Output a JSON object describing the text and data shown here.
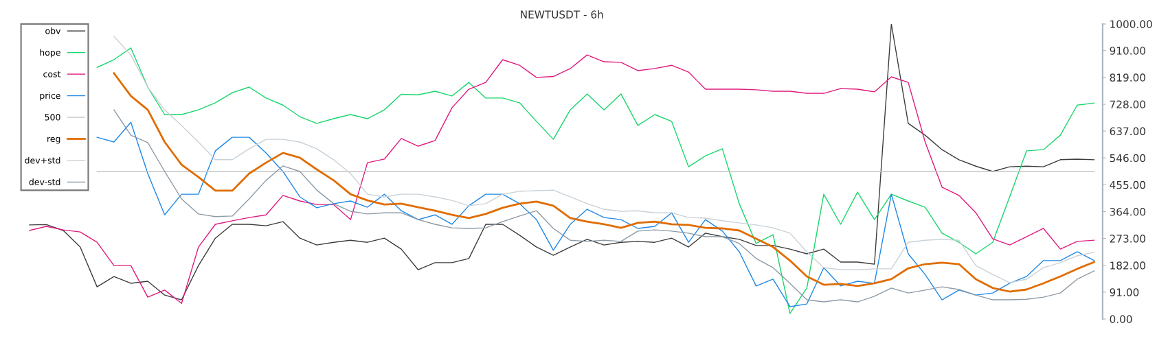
{
  "chart_data": {
    "type": "line",
    "title": "NEWTUSDT - 6h",
    "categories": [
      null,
      null,
      null,
      null,
      null,
      null,
      null,
      null,
      null,
      null,
      null,
      null,
      null,
      null,
      null,
      null,
      null,
      null,
      null,
      null,
      null,
      null,
      null,
      null,
      null,
      null,
      null,
      null,
      null,
      null,
      null,
      null,
      null,
      null,
      null,
      null,
      null,
      null,
      null,
      null,
      null,
      null,
      null,
      null,
      null,
      null,
      null,
      null,
      null,
      null,
      null,
      null,
      null,
      null,
      null,
      null,
      null,
      null,
      null,
      null,
      null,
      null,
      null,
      null
    ],
    "series": [
      {
        "name": "obv",
        "color": "#3c3c3c",
        "values": [
          319,
          320,
          300,
          244,
          109,
          144,
          121,
          128,
          81,
          65,
          181,
          274,
          321,
          321,
          316,
          330,
          274,
          251,
          260,
          267,
          260,
          274,
          237,
          167,
          191,
          191,
          205,
          321,
          321,
          284,
          244,
          216,
          244,
          270,
          251,
          260,
          263,
          260,
          274,
          244,
          291,
          279,
          270,
          249,
          249,
          237,
          221,
          237,
          193,
          193,
          186,
          1000,
          663,
          623,
          574,
          540,
          518,
          500,
          516,
          518,
          516,
          540,
          542,
          540
        ]
      },
      {
        "name": "hope",
        "color": "#19d66b",
        "values": [
          null,
          null,
          null,
          null,
          853,
          879,
          919,
          786,
          693,
          693,
          709,
          733,
          767,
          786,
          749,
          725,
          686,
          663,
          679,
          693,
          679,
          709,
          762,
          760,
          772,
          756,
          802,
          749,
          749,
          733,
          670,
          609,
          709,
          763,
          709,
          763,
          656,
          693,
          670,
          516,
          553,
          577,
          391,
          256,
          286,
          19,
          105,
          423,
          321,
          430,
          337,
          423,
          400,
          379,
          291,
          260,
          221,
          260,
          414,
          570,
          574,
          623,
          725,
          732
        ]
      },
      {
        "name": "cost",
        "color": "#e0197d",
        "values": [
          300,
          314,
          302,
          295,
          260,
          181,
          181,
          74,
          98,
          53,
          244,
          321,
          333,
          344,
          353,
          419,
          400,
          388,
          388,
          337,
          530,
          542,
          612,
          586,
          605,
          716,
          779,
          802,
          879,
          860,
          819,
          822,
          849,
          895,
          872,
          870,
          842,
          849,
          860,
          837,
          779,
          779,
          779,
          777,
          772,
          772,
          765,
          765,
          781,
          779,
          770,
          821,
          802,
          600,
          447,
          419,
          360,
          272,
          251,
          279,
          307,
          237,
          263,
          267
        ]
      },
      {
        "name": "price",
        "color": "#1e88e5",
        "values": [
          null,
          null,
          null,
          null,
          616,
          600,
          667,
          493,
          353,
          423,
          423,
          570,
          616,
          616,
          563,
          500,
          414,
          377,
          391,
          400,
          379,
          423,
          367,
          337,
          353,
          321,
          384,
          423,
          423,
          391,
          337,
          233,
          321,
          372,
          344,
          337,
          307,
          314,
          360,
          260,
          337,
          298,
          228,
          112,
          135,
          42,
          51,
          174,
          112,
          128,
          121,
          423,
          221,
          151,
          65,
          98,
          81,
          88,
          121,
          144,
          198,
          198,
          228,
          198
        ]
      },
      {
        "name": "500",
        "color": "#c4c4c4",
        "values": [
          null,
          null,
          null,
          null,
          500,
          500,
          500,
          500,
          500,
          500,
          500,
          500,
          500,
          500,
          500,
          500,
          500,
          500,
          500,
          500,
          500,
          500,
          500,
          500,
          500,
          500,
          500,
          500,
          500,
          500,
          500,
          500,
          500,
          500,
          500,
          500,
          500,
          500,
          500,
          500,
          500,
          500,
          500,
          500,
          500,
          500,
          500,
          500,
          500,
          500,
          500,
          500,
          500,
          500,
          500,
          500,
          500,
          500,
          500,
          500,
          500,
          500,
          500,
          500
        ]
      },
      {
        "name": "reg",
        "color": "#e06c00",
        "values": [
          null,
          null,
          null,
          null,
          null,
          833,
          756,
          709,
          600,
          523,
          481,
          435,
          435,
          493,
          530,
          563,
          547,
          507,
          470,
          423,
          402,
          388,
          391,
          379,
          367,
          353,
          342,
          356,
          377,
          391,
          398,
          384,
          342,
          330,
          321,
          309,
          326,
          330,
          321,
          319,
          309,
          307,
          300,
          272,
          244,
          198,
          144,
          116,
          119,
          112,
          121,
          135,
          172,
          186,
          191,
          186,
          135,
          105,
          93,
          100,
          121,
          144,
          170,
          193
        ]
      },
      {
        "name": "dev+std",
        "color": "#c9d1d7",
        "values": [
          null,
          null,
          null,
          null,
          null,
          958,
          895,
          786,
          709,
          656,
          600,
          540,
          540,
          577,
          609,
          609,
          600,
          577,
          540,
          493,
          423,
          414,
          423,
          423,
          414,
          402,
          384,
          391,
          423,
          433,
          435,
          437,
          414,
          391,
          372,
          365,
          367,
          360,
          360,
          344,
          342,
          333,
          326,
          319,
          309,
          291,
          228,
          174,
          167,
          167,
          170,
          170,
          260,
          267,
          270,
          267,
          181,
          151,
          123,
          135,
          174,
          191,
          214,
          226
        ]
      },
      {
        "name": "dev-std",
        "color": "#8c9aa6",
        "values": [
          null,
          null,
          null,
          null,
          null,
          709,
          623,
          598,
          500,
          407,
          356,
          347,
          349,
          407,
          470,
          519,
          500,
          437,
          391,
          365,
          356,
          360,
          360,
          337,
          321,
          309,
          307,
          309,
          330,
          349,
          367,
          307,
          267,
          263,
          267,
          263,
          298,
          302,
          298,
          291,
          279,
          279,
          256,
          205,
          174,
          121,
          65,
          58,
          65,
          58,
          77,
          105,
          88,
          98,
          109,
          100,
          81,
          65,
          65,
          67,
          74,
          88,
          135,
          163
        ]
      }
    ],
    "ylim": [
      0,
      1000
    ],
    "yticks": [
      {
        "value": 0,
        "label": "0.00"
      },
      {
        "value": 91,
        "label": "91.00"
      },
      {
        "value": 182,
        "label": "182.00"
      },
      {
        "value": 273,
        "label": "273.00"
      },
      {
        "value": 364,
        "label": "364.00"
      },
      {
        "value": 455,
        "label": "455.00"
      },
      {
        "value": 546,
        "label": "546.00"
      },
      {
        "value": 637,
        "label": "637.00"
      },
      {
        "value": 728,
        "label": "728.00"
      },
      {
        "value": 819,
        "label": "819.00"
      },
      {
        "value": 910,
        "label": "910.00"
      },
      {
        "value": 1000,
        "label": "1000.00"
      }
    ],
    "tick_labels": "y",
    "grid": false,
    "legend": "top left",
    "marker": "none",
    "line_style": "solid"
  }
}
